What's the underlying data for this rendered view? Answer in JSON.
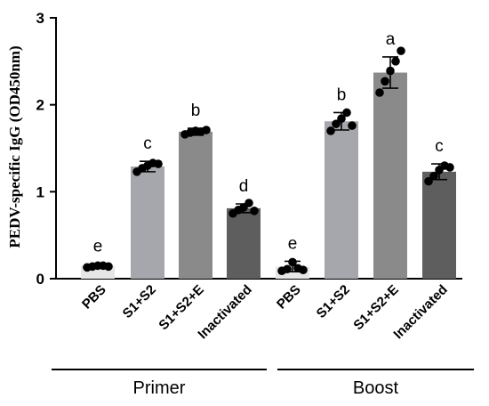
{
  "chart_data": {
    "type": "bar",
    "ylabel": "PEDV-specific IgG (OD450nm)",
    "ylim": [
      0,
      3
    ],
    "yticks": [
      "0",
      "1",
      "2",
      "3"
    ],
    "grid": false,
    "groups": [
      {
        "label": "Primer",
        "bars": [
          {
            "category": "PBS",
            "value": 0.15,
            "error": 0.02,
            "letter": "e",
            "color": "#e6e6e6",
            "points": [
              0.13,
              0.14,
              0.15,
              0.15,
              0.14
            ]
          },
          {
            "category": "S1+S2",
            "value": 1.29,
            "error": 0.06,
            "letter": "c",
            "color": "#a6a6ad",
            "points": [
              1.23,
              1.27,
              1.3,
              1.33,
              1.32
            ]
          },
          {
            "category": "S1+S2+E",
            "value": 1.69,
            "error": 0.04,
            "letter": "b",
            "color": "#8a8a8a",
            "points": [
              1.66,
              1.68,
              1.7,
              1.69,
              1.71
            ]
          },
          {
            "category": "Inactivated",
            "value": 0.81,
            "error": 0.05,
            "letter": "d",
            "color": "#5e5e5e",
            "points": [
              0.75,
              0.79,
              0.82,
              0.87,
              0.78
            ]
          }
        ]
      },
      {
        "label": "Boost",
        "bars": [
          {
            "category": "PBS",
            "value": 0.14,
            "error": 0.06,
            "letter": "e",
            "color": "#e6e6e6",
            "points": [
              0.09,
              0.11,
              0.19,
              0.12,
              0.1
            ]
          },
          {
            "category": "S1+S2",
            "value": 1.81,
            "error": 0.1,
            "letter": "b",
            "color": "#a6a6ad",
            "points": [
              1.7,
              1.78,
              1.84,
              1.91,
              1.76
            ]
          },
          {
            "category": "S1+S2+E",
            "value": 2.37,
            "error": 0.18,
            "letter": "a",
            "color": "#8a8a8a",
            "points": [
              2.14,
              2.27,
              2.39,
              2.5,
              2.62
            ]
          },
          {
            "category": "Inactivated",
            "value": 1.23,
            "error": 0.09,
            "letter": "c",
            "color": "#5e5e5e",
            "points": [
              1.12,
              1.18,
              1.25,
              1.3,
              1.28
            ]
          }
        ]
      }
    ]
  }
}
